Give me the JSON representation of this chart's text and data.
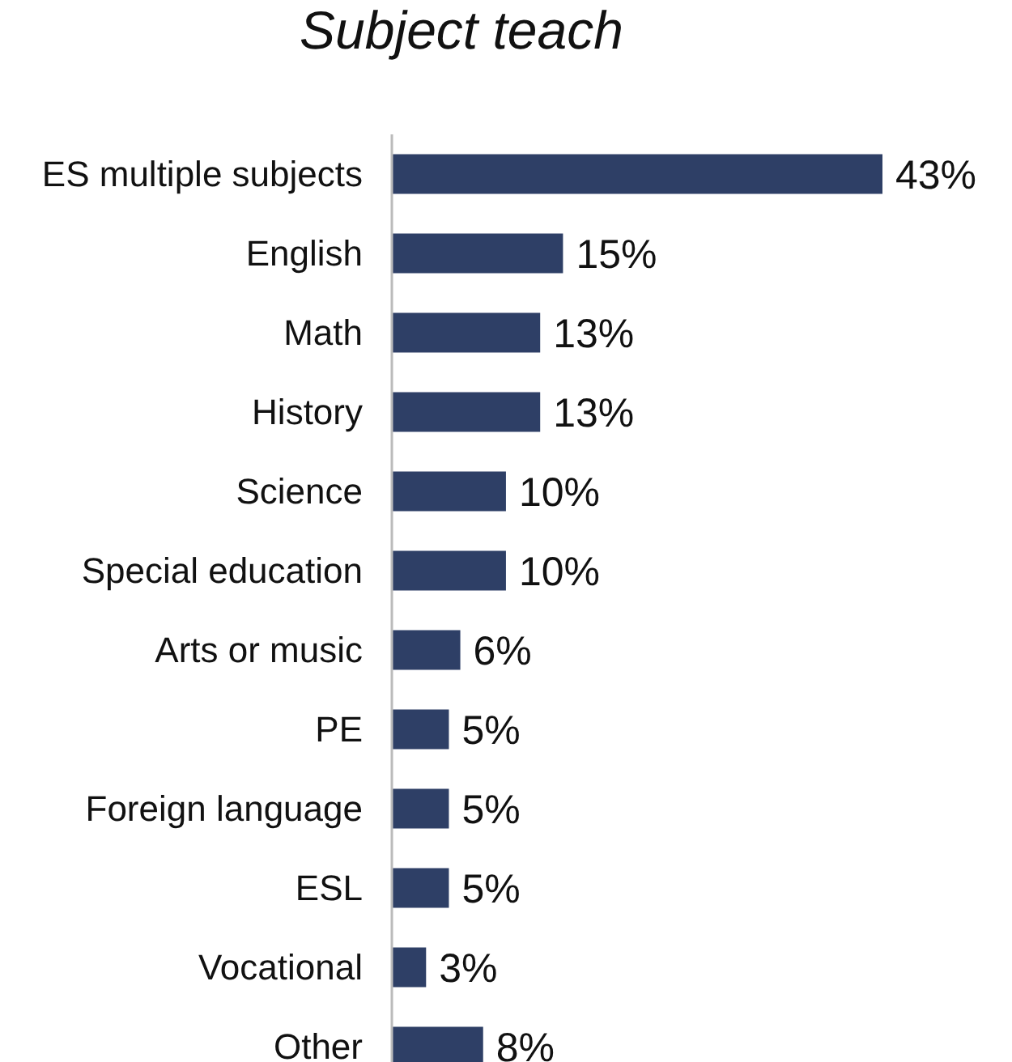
{
  "chart_data": {
    "type": "bar",
    "orientation": "horizontal",
    "title": "Subject teach",
    "categories": [
      "ES multiple subjects",
      "English",
      "Math",
      "History",
      "Science",
      "Special education",
      "Arts or music",
      "PE",
      "Foreign language",
      "ESL",
      "Vocational",
      "Other"
    ],
    "values": [
      43,
      15,
      13,
      13,
      10,
      10,
      6,
      5,
      5,
      5,
      3,
      8
    ],
    "value_labels": [
      "43%",
      "15%",
      "13%",
      "13%",
      "10%",
      "10%",
      "6%",
      "5%",
      "5%",
      "5%",
      "3%",
      "8%"
    ],
    "color": "#2e3f66"
  }
}
